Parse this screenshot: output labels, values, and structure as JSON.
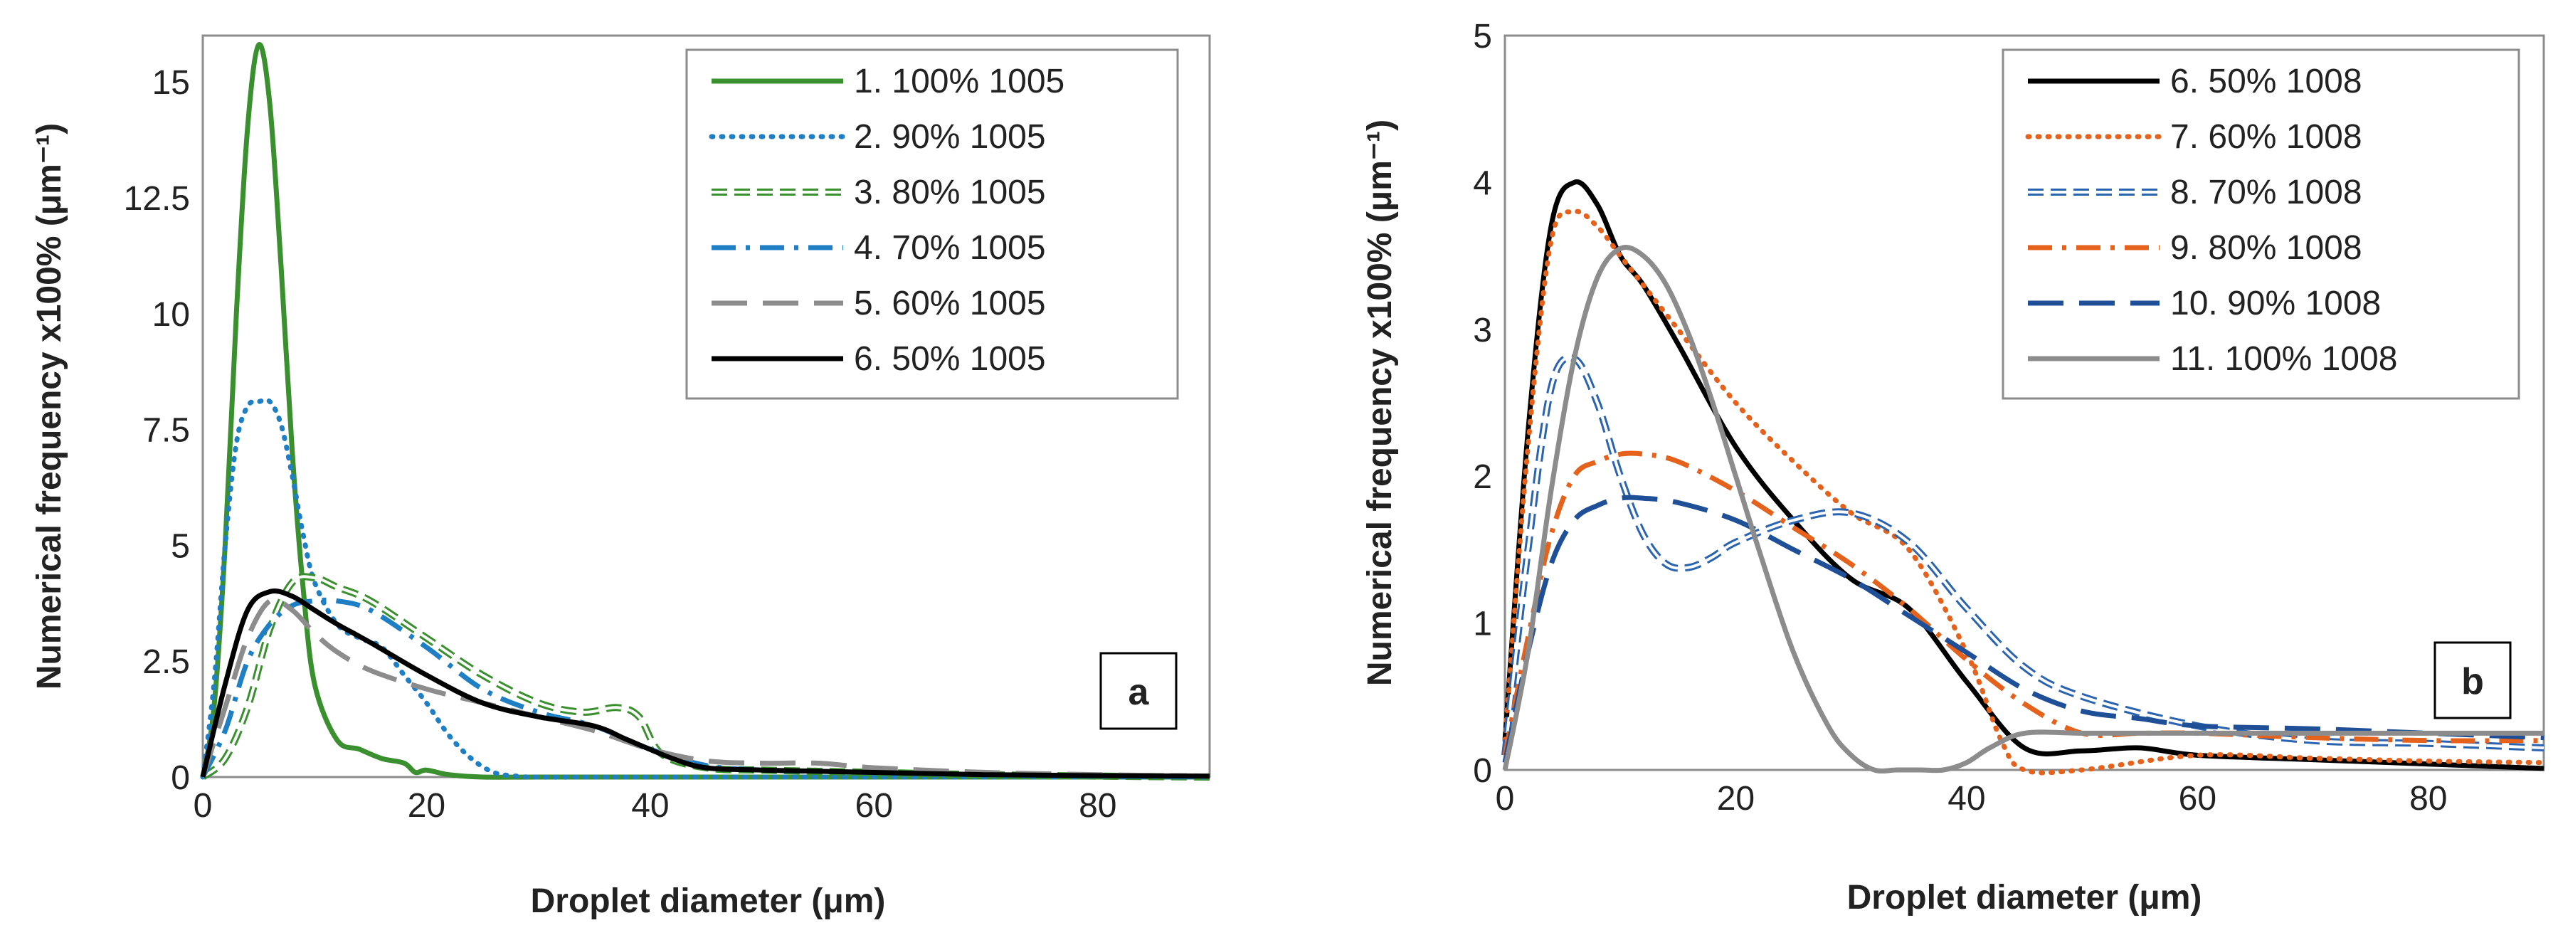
{
  "chart_data": [
    {
      "type": "line",
      "panel": "a",
      "xlabel": "Droplet diameter (μm)",
      "ylabel": "Numerical frequency x100% (μm⁻¹)",
      "xlim": [
        0,
        90
      ],
      "ylim": [
        0,
        16
      ],
      "xticks": [
        "0",
        "20",
        "40",
        "60",
        "80"
      ],
      "yticks": [
        "0",
        "2.5",
        "5",
        "7.5",
        "10",
        "12.5",
        "15"
      ],
      "legend_position": "top-right",
      "series": [
        {
          "name": "1. 100% 1005",
          "color": "#3a8f2e",
          "style": "solid",
          "x": [
            0,
            1,
            2,
            3,
            4,
            5,
            6,
            7,
            8,
            9,
            10,
            12,
            14,
            16,
            18,
            19,
            20,
            22,
            25,
            30,
            40,
            90
          ],
          "y": [
            0,
            1.5,
            5,
            10,
            14,
            15.8,
            14.5,
            11,
            7,
            4,
            2,
            0.8,
            0.6,
            0.4,
            0.3,
            0.1,
            0.15,
            0.05,
            0,
            0,
            0,
            0
          ]
        },
        {
          "name": "2. 90% 1005",
          "color": "#1f7fc4",
          "style": "dotted",
          "x": [
            0,
            1,
            2,
            3,
            4,
            5,
            6,
            7,
            8,
            9,
            10,
            12,
            14,
            16,
            18,
            20,
            22,
            24,
            26,
            28,
            30,
            40,
            90
          ],
          "y": [
            0,
            2,
            5,
            7.2,
            8,
            8.1,
            8.1,
            7.6,
            6.5,
            5.2,
            4.2,
            3.3,
            3.0,
            2.8,
            2.2,
            1.6,
            0.9,
            0.4,
            0.1,
            0.02,
            0,
            0,
            0
          ]
        },
        {
          "name": "3. 80% 1005",
          "color": "#3a8f2e",
          "style": "double",
          "x": [
            0,
            2,
            4,
            6,
            8,
            10,
            12,
            15,
            20,
            25,
            30,
            34,
            37,
            39,
            41,
            45,
            50,
            60,
            70,
            80,
            90
          ],
          "y": [
            0,
            0.4,
            1.5,
            3.2,
            4.2,
            4.3,
            4.1,
            3.8,
            3.0,
            2.2,
            1.6,
            1.4,
            1.5,
            1.3,
            0.5,
            0.2,
            0.15,
            0.1,
            0.05,
            0.02,
            0
          ]
        },
        {
          "name": "4. 70% 1005",
          "color": "#1f7fc4",
          "style": "dashdot",
          "x": [
            0,
            2,
            4,
            6,
            8,
            10,
            12,
            15,
            20,
            25,
            30,
            35,
            40,
            45,
            50,
            60,
            70,
            80,
            90
          ],
          "y": [
            0,
            1.0,
            2.5,
            3.3,
            3.7,
            3.8,
            3.8,
            3.6,
            2.8,
            1.9,
            1.4,
            1.1,
            0.6,
            0.25,
            0.15,
            0.1,
            0.05,
            0.02,
            0
          ]
        },
        {
          "name": "5. 60% 1005",
          "color": "#8c8c8c",
          "style": "longdash",
          "x": [
            0,
            2,
            4,
            6,
            8,
            10,
            12,
            15,
            20,
            25,
            30,
            35,
            40,
            45,
            50,
            55,
            60,
            70,
            80,
            90
          ],
          "y": [
            0,
            1.5,
            3.0,
            3.8,
            3.6,
            3.1,
            2.7,
            2.3,
            1.9,
            1.6,
            1.3,
            1.0,
            0.6,
            0.35,
            0.3,
            0.3,
            0.2,
            0.1,
            0.05,
            0.02
          ]
        },
        {
          "name": "6. 50% 1005",
          "color": "#000000",
          "style": "solid",
          "x": [
            0,
            2,
            4,
            6,
            8,
            10,
            12,
            15,
            20,
            25,
            30,
            35,
            38,
            42,
            45,
            50,
            60,
            70,
            80,
            90
          ],
          "y": [
            0,
            2.0,
            3.6,
            4.0,
            3.9,
            3.6,
            3.3,
            2.9,
            2.2,
            1.6,
            1.3,
            1.1,
            0.8,
            0.4,
            0.2,
            0.15,
            0.1,
            0.05,
            0.03,
            0.02
          ]
        }
      ]
    },
    {
      "type": "line",
      "panel": "b",
      "xlabel": "Droplet diameter (μm)",
      "ylabel": "Numerical frequency x100% (μm⁻¹)",
      "xlim": [
        0,
        90
      ],
      "ylim": [
        0,
        5
      ],
      "xticks": [
        "0",
        "20",
        "40",
        "60",
        "80"
      ],
      "yticks": [
        "0",
        "1",
        "2",
        "3",
        "4",
        "5"
      ],
      "legend_position": "top-right",
      "series": [
        {
          "name": "6. 50% 1008",
          "color": "#000000",
          "style": "solid",
          "x": [
            0,
            2,
            4,
            6,
            8,
            10,
            12,
            15,
            20,
            25,
            30,
            35,
            40,
            45,
            50,
            55,
            60,
            70,
            80,
            90
          ],
          "y": [
            0.2,
            2.3,
            3.7,
            4.0,
            3.85,
            3.5,
            3.3,
            2.9,
            2.2,
            1.7,
            1.3,
            1.1,
            0.6,
            0.15,
            0.13,
            0.15,
            0.1,
            0.07,
            0.04,
            0.01
          ]
        },
        {
          "name": "7. 60% 1008",
          "color": "#e4621c",
          "style": "dotted",
          "x": [
            0,
            2,
            4,
            6,
            8,
            10,
            12,
            15,
            20,
            25,
            30,
            35,
            40,
            43,
            45,
            50,
            60,
            70,
            80,
            90
          ],
          "y": [
            0.2,
            2.2,
            3.6,
            3.8,
            3.7,
            3.5,
            3.3,
            3.0,
            2.5,
            2.1,
            1.75,
            1.5,
            0.8,
            0.2,
            0,
            0,
            0.1,
            0.08,
            0.06,
            0.05
          ]
        },
        {
          "name": "8. 70% 1008",
          "color": "#2a63b0",
          "style": "double",
          "x": [
            0,
            2,
            4,
            6,
            8,
            10,
            12,
            14,
            16,
            18,
            20,
            25,
            30,
            35,
            40,
            45,
            50,
            60,
            70,
            80,
            90
          ],
          "y": [
            0.1,
            1.5,
            2.6,
            2.8,
            2.5,
            2.0,
            1.6,
            1.4,
            1.38,
            1.45,
            1.55,
            1.7,
            1.75,
            1.55,
            1.1,
            0.7,
            0.5,
            0.3,
            0.2,
            0.18,
            0.15
          ]
        },
        {
          "name": "9. 80% 1008",
          "color": "#e4621c",
          "style": "dashdot",
          "x": [
            0,
            2,
            4,
            6,
            8,
            10,
            12,
            15,
            20,
            25,
            30,
            35,
            40,
            45,
            50,
            55,
            60,
            70,
            80,
            90
          ],
          "y": [
            0.1,
            0.9,
            1.6,
            2.0,
            2.1,
            2.15,
            2.15,
            2.1,
            1.9,
            1.65,
            1.4,
            1.1,
            0.75,
            0.45,
            0.25,
            0.25,
            0.25,
            0.22,
            0.2,
            0.2
          ]
        },
        {
          "name": "10. 90% 1008",
          "color": "#1f4f96",
          "style": "longdash",
          "x": [
            0,
            2,
            4,
            6,
            8,
            10,
            12,
            15,
            20,
            25,
            30,
            35,
            40,
            45,
            50,
            55,
            60,
            70,
            80,
            90
          ],
          "y": [
            0.05,
            0.8,
            1.4,
            1.7,
            1.8,
            1.85,
            1.85,
            1.82,
            1.7,
            1.5,
            1.3,
            1.05,
            0.8,
            0.55,
            0.4,
            0.35,
            0.3,
            0.28,
            0.25,
            0.22
          ]
        },
        {
          "name": "11. 100% 1008",
          "color": "#8c8c8c",
          "style": "solid",
          "x": [
            0,
            2,
            4,
            6,
            8,
            10,
            12,
            14,
            16,
            18,
            20,
            22,
            25,
            28,
            30,
            32,
            34,
            36,
            38,
            40,
            42,
            45,
            50,
            55,
            60,
            70,
            80,
            90
          ],
          "y": [
            0,
            0.8,
            1.9,
            2.8,
            3.35,
            3.55,
            3.5,
            3.3,
            2.95,
            2.5,
            2.0,
            1.5,
            0.8,
            0.3,
            0.1,
            0,
            0,
            0,
            0,
            0.05,
            0.15,
            0.25,
            0.25,
            0.25,
            0.25,
            0.25,
            0.25,
            0.25
          ]
        }
      ]
    }
  ]
}
